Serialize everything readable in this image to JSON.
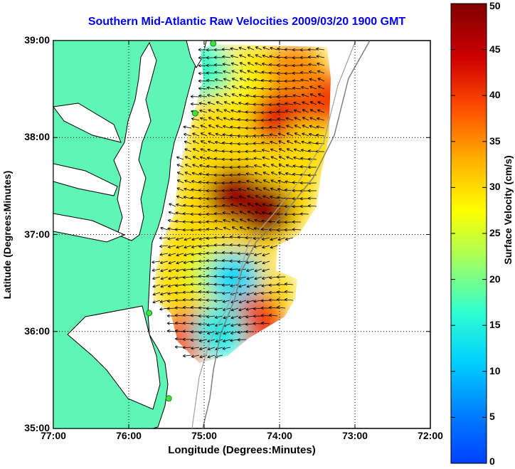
{
  "title": "Southern Mid-Atlantic Raw Velocities 2009/03/20 1900 GMT",
  "xaxis": {
    "label": "Longitude (Degrees:Minutes)",
    "ticks": [
      "77:00",
      "76:00",
      "75:00",
      "74:00",
      "73:00",
      "72:00"
    ]
  },
  "yaxis": {
    "label": "Latitude (Degrees:Minutes)",
    "ticks": [
      "39:00",
      "38:00",
      "37:00",
      "36:00",
      "35:00"
    ]
  },
  "colorbar": {
    "label": "Surface Velocity (cm/s)",
    "ticks": [
      "50",
      "45",
      "40",
      "35",
      "30",
      "25",
      "20",
      "15",
      "10",
      "5",
      "0"
    ],
    "range": [
      0,
      50
    ],
    "colormap": "jet"
  },
  "map": {
    "lon_range": [
      -77,
      -72
    ],
    "lat_range": [
      35,
      39
    ],
    "land_color": "#5ff5b4",
    "water_color": "#ffffff",
    "grid": "dotted",
    "stations": [
      {
        "lon": -74.88,
        "lat": 38.97
      },
      {
        "lon": -75.12,
        "lat": 38.25
      },
      {
        "lon": -75.73,
        "lat": 36.19
      },
      {
        "lon": -75.47,
        "lat": 35.31
      }
    ]
  },
  "chart_data": {
    "type": "heatmap",
    "title": "Southern Mid-Atlantic Raw Velocities 2009/03/20 1900 GMT",
    "xlabel": "Longitude (Degrees:Minutes)",
    "ylabel": "Latitude (Degrees:Minutes)",
    "colorbar_label": "Surface Velocity (cm/s)",
    "xlim": [
      -77,
      -72
    ],
    "ylim": [
      35,
      39
    ],
    "clim": [
      0,
      50
    ],
    "velocity_centers": [
      {
        "lon": -74.6,
        "lat": 37.4,
        "speed": 48
      },
      {
        "lon": -74.2,
        "lat": 37.25,
        "speed": 49
      },
      {
        "lon": -74.0,
        "lat": 38.2,
        "speed": 42
      },
      {
        "lon": -73.4,
        "lat": 38.4,
        "speed": 40
      },
      {
        "lon": -73.8,
        "lat": 38.7,
        "speed": 35
      },
      {
        "lon": -74.6,
        "lat": 38.6,
        "speed": 28
      },
      {
        "lon": -74.9,
        "lat": 36.6,
        "speed": 25
      },
      {
        "lon": -74.6,
        "lat": 36.55,
        "speed": 12
      },
      {
        "lon": -74.3,
        "lat": 36.1,
        "speed": 40
      },
      {
        "lon": -75.2,
        "lat": 35.95,
        "speed": 38
      },
      {
        "lon": -74.8,
        "lat": 36.0,
        "speed": 14
      },
      {
        "lon": -75.0,
        "lat": 38.7,
        "speed": 17
      },
      {
        "lon": -73.6,
        "lat": 37.9,
        "speed": 30
      }
    ]
  }
}
